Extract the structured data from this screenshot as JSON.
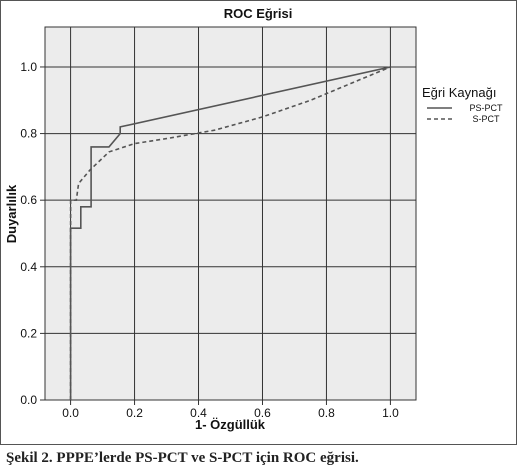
{
  "chart_data": {
    "type": "line",
    "title": "ROC Eğrisi",
    "xlabel": "1- Özgüllük",
    "ylabel": "Duyarlılık",
    "xlim": [
      -0.08,
      1.08
    ],
    "ylim": [
      0.0,
      1.12
    ],
    "xticks": [
      "0.0",
      "0.2",
      "0.4",
      "0.6",
      "0.8",
      "1.0"
    ],
    "yticks": [
      "0.0",
      "0.2",
      "0.4",
      "0.6",
      "0.8",
      "1.0"
    ],
    "grid": true,
    "legend": {
      "title": "Eğri Kaynağı",
      "placement": "right-outside"
    },
    "series": [
      {
        "name": "PS-PCT",
        "style": "solid",
        "color": "#555555",
        "points": [
          [
            0.0,
            0.0
          ],
          [
            0.0,
            0.516
          ],
          [
            0.032,
            0.516
          ],
          [
            0.032,
            0.58
          ],
          [
            0.064,
            0.58
          ],
          [
            0.064,
            0.76
          ],
          [
            0.12,
            0.76
          ],
          [
            0.155,
            0.8
          ],
          [
            0.155,
            0.82
          ],
          [
            1.0,
            1.0
          ]
        ]
      },
      {
        "name": "S-PCT",
        "style": "dashed",
        "color": "#555555",
        "points": [
          [
            0.0,
            0.0
          ],
          [
            0.0,
            0.6
          ],
          [
            0.018,
            0.6
          ],
          [
            0.025,
            0.65
          ],
          [
            0.06,
            0.69
          ],
          [
            0.12,
            0.745
          ],
          [
            0.2,
            0.77
          ],
          [
            0.3,
            0.785
          ],
          [
            0.45,
            0.81
          ],
          [
            0.6,
            0.85
          ],
          [
            0.75,
            0.9
          ],
          [
            0.9,
            0.96
          ],
          [
            1.0,
            1.0
          ]
        ]
      }
    ]
  },
  "caption": "Şekil 2. PPPE’lerde PS-PCT ve S-PCT için ROC eğrisi."
}
